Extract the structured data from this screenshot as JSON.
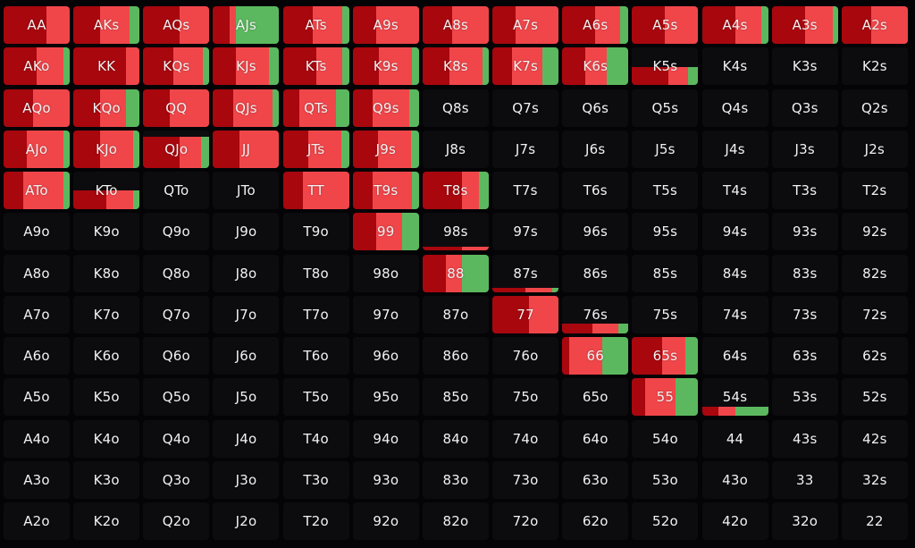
{
  "colors": {
    "background": "#040406",
    "empty_cell": "#0c0c0f",
    "dark_red": "#a8070e",
    "red": "#f0464a",
    "green": "#5cb85f",
    "label": "#f2f2f2"
  },
  "action_order": [
    "dark_red",
    "red",
    "green"
  ],
  "hands": [
    [
      "AA",
      "AKs",
      "AQs",
      "AJs",
      "ATs",
      "A9s",
      "A8s",
      "A7s",
      "A6s",
      "A5s",
      "A4s",
      "A3s",
      "A2s"
    ],
    [
      "AKo",
      "KK",
      "KQs",
      "KJs",
      "KTs",
      "K9s",
      "K8s",
      "K7s",
      "K6s",
      "K5s",
      "K4s",
      "K3s",
      "K2s"
    ],
    [
      "AQo",
      "KQo",
      "QQ",
      "QJs",
      "QTs",
      "Q9s",
      "Q8s",
      "Q7s",
      "Q6s",
      "Q5s",
      "Q4s",
      "Q3s",
      "Q2s"
    ],
    [
      "AJo",
      "KJo",
      "QJo",
      "JJ",
      "JTs",
      "J9s",
      "J8s",
      "J7s",
      "J6s",
      "J5s",
      "J4s",
      "J3s",
      "J2s"
    ],
    [
      "ATo",
      "KTo",
      "QTo",
      "JTo",
      "TT",
      "T9s",
      "T8s",
      "T7s",
      "T6s",
      "T5s",
      "T4s",
      "T3s",
      "T2s"
    ],
    [
      "A9o",
      "K9o",
      "Q9o",
      "J9o",
      "T9o",
      "99",
      "98s",
      "97s",
      "96s",
      "95s",
      "94s",
      "93s",
      "92s"
    ],
    [
      "A8o",
      "K8o",
      "Q8o",
      "J8o",
      "T8o",
      "98o",
      "88",
      "87s",
      "86s",
      "85s",
      "84s",
      "83s",
      "82s"
    ],
    [
      "A7o",
      "K7o",
      "Q7o",
      "J7o",
      "T7o",
      "97o",
      "87o",
      "77",
      "76s",
      "75s",
      "74s",
      "73s",
      "72s"
    ],
    [
      "A6o",
      "K6o",
      "Q6o",
      "J6o",
      "T6o",
      "96o",
      "86o",
      "76o",
      "66",
      "65s",
      "64s",
      "63s",
      "62s"
    ],
    [
      "A5o",
      "K5o",
      "Q5o",
      "J5o",
      "T5o",
      "95o",
      "85o",
      "75o",
      "65o",
      "55",
      "54s",
      "53s",
      "52s"
    ],
    [
      "A4o",
      "K4o",
      "Q4o",
      "J4o",
      "T4o",
      "94o",
      "84o",
      "74o",
      "64o",
      "54o",
      "44",
      "43s",
      "42s"
    ],
    [
      "A3o",
      "K3o",
      "Q3o",
      "J3o",
      "T3o",
      "93o",
      "83o",
      "73o",
      "63o",
      "53o",
      "43o",
      "33",
      "32s"
    ],
    [
      "A2o",
      "K2o",
      "Q2o",
      "J2o",
      "T2o",
      "92o",
      "82o",
      "72o",
      "62o",
      "52o",
      "42o",
      "32o",
      "22"
    ]
  ],
  "frequencies": {
    "AA": {
      "frequency": 1.0,
      "mix": [
        0.65,
        0.35,
        0.0
      ]
    },
    "AKs": {
      "frequency": 1.0,
      "mix": [
        0.4,
        0.45,
        0.15
      ]
    },
    "AQs": {
      "frequency": 1.0,
      "mix": [
        0.55,
        0.45,
        0.0
      ]
    },
    "AJs": {
      "frequency": 1.0,
      "mix": [
        0.25,
        0.1,
        0.65
      ]
    },
    "ATs": {
      "frequency": 1.0,
      "mix": [
        0.45,
        0.45,
        0.1
      ]
    },
    "A9s": {
      "frequency": 1.0,
      "mix": [
        0.35,
        0.65,
        0.0
      ]
    },
    "A8s": {
      "frequency": 1.0,
      "mix": [
        0.45,
        0.55,
        0.0
      ]
    },
    "A7s": {
      "frequency": 1.0,
      "mix": [
        0.35,
        0.65,
        0.0
      ]
    },
    "A6s": {
      "frequency": 1.0,
      "mix": [
        0.5,
        0.38,
        0.12
      ]
    },
    "A5s": {
      "frequency": 1.0,
      "mix": [
        0.5,
        0.5,
        0.0
      ]
    },
    "A4s": {
      "frequency": 1.0,
      "mix": [
        0.5,
        0.4,
        0.1
      ]
    },
    "A3s": {
      "frequency": 1.0,
      "mix": [
        0.5,
        0.42,
        0.08
      ]
    },
    "A2s": {
      "frequency": 1.0,
      "mix": [
        0.45,
        0.55,
        0.0
      ]
    },
    "AKo": {
      "frequency": 1.0,
      "mix": [
        0.5,
        0.4,
        0.1
      ]
    },
    "KK": {
      "frequency": 1.0,
      "mix": [
        0.8,
        0.2,
        0.0
      ]
    },
    "KQs": {
      "frequency": 1.0,
      "mix": [
        0.45,
        0.45,
        0.1
      ]
    },
    "KJs": {
      "frequency": 1.0,
      "mix": [
        0.35,
        0.5,
        0.15
      ]
    },
    "KTs": {
      "frequency": 1.0,
      "mix": [
        0.5,
        0.4,
        0.1
      ]
    },
    "K9s": {
      "frequency": 1.0,
      "mix": [
        0.4,
        0.5,
        0.1
      ]
    },
    "K8s": {
      "frequency": 1.0,
      "mix": [
        0.4,
        0.5,
        0.1
      ]
    },
    "K7s": {
      "frequency": 1.0,
      "mix": [
        0.3,
        0.45,
        0.25
      ]
    },
    "K6s": {
      "frequency": 1.0,
      "mix": [
        0.35,
        0.32,
        0.33
      ]
    },
    "K5s": {
      "frequency": 0.48,
      "mix": [
        0.55,
        0.3,
        0.15
      ]
    },
    "AQo": {
      "frequency": 1.0,
      "mix": [
        0.45,
        0.55,
        0.0
      ]
    },
    "KQo": {
      "frequency": 1.0,
      "mix": [
        0.4,
        0.4,
        0.2
      ]
    },
    "QQ": {
      "frequency": 1.0,
      "mix": [
        0.4,
        0.6,
        0.0
      ]
    },
    "QJs": {
      "frequency": 1.0,
      "mix": [
        0.3,
        0.6,
        0.1
      ]
    },
    "QTs": {
      "frequency": 1.0,
      "mix": [
        0.25,
        0.55,
        0.2
      ]
    },
    "Q9s": {
      "frequency": 1.0,
      "mix": [
        0.3,
        0.55,
        0.15
      ]
    },
    "AJo": {
      "frequency": 1.0,
      "mix": [
        0.35,
        0.55,
        0.1
      ]
    },
    "KJo": {
      "frequency": 1.0,
      "mix": [
        0.4,
        0.5,
        0.1
      ]
    },
    "QJo": {
      "frequency": 0.83,
      "mix": [
        0.55,
        0.32,
        0.13
      ]
    },
    "JJ": {
      "frequency": 1.0,
      "mix": [
        0.4,
        0.6,
        0.0
      ]
    },
    "JTs": {
      "frequency": 1.0,
      "mix": [
        0.38,
        0.5,
        0.12
      ]
    },
    "J9s": {
      "frequency": 1.0,
      "mix": [
        0.38,
        0.5,
        0.12
      ]
    },
    "ATo": {
      "frequency": 1.0,
      "mix": [
        0.3,
        0.6,
        0.1
      ]
    },
    "KTo": {
      "frequency": 0.5,
      "mix": [
        0.5,
        0.4,
        0.1
      ]
    },
    "TT": {
      "frequency": 1.0,
      "mix": [
        0.3,
        0.7,
        0.0
      ]
    },
    "T9s": {
      "frequency": 1.0,
      "mix": [
        0.3,
        0.6,
        0.1
      ]
    },
    "T8s": {
      "frequency": 1.0,
      "mix": [
        0.6,
        0.25,
        0.15
      ]
    },
    "99": {
      "frequency": 1.0,
      "mix": [
        0.35,
        0.4,
        0.25
      ]
    },
    "98s": {
      "frequency": 0.1,
      "mix": [
        0.6,
        0.4,
        0.0
      ]
    },
    "88": {
      "frequency": 1.0,
      "mix": [
        0.35,
        0.25,
        0.4
      ]
    },
    "87s": {
      "frequency": 0.1,
      "mix": [
        0.5,
        0.4,
        0.1
      ]
    },
    "77": {
      "frequency": 1.0,
      "mix": [
        0.55,
        0.45,
        0.0
      ]
    },
    "76s": {
      "frequency": 0.25,
      "mix": [
        0.45,
        0.4,
        0.15
      ]
    },
    "66": {
      "frequency": 1.0,
      "mix": [
        0.1,
        0.5,
        0.4
      ]
    },
    "65s": {
      "frequency": 1.0,
      "mix": [
        0.45,
        0.35,
        0.2
      ]
    },
    "55": {
      "frequency": 1.0,
      "mix": [
        0.2,
        0.45,
        0.35
      ]
    },
    "54s": {
      "frequency": 0.25,
      "mix": [
        0.25,
        0.25,
        0.5
      ]
    }
  }
}
